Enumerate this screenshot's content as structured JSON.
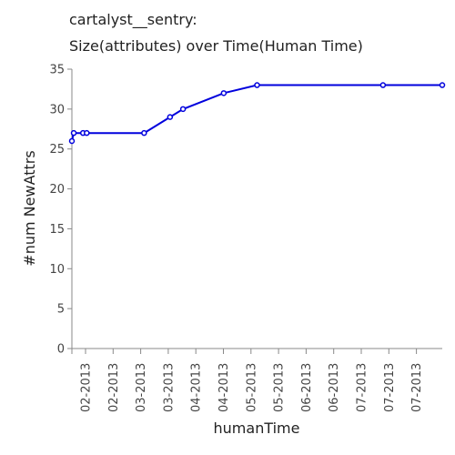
{
  "chart_data": {
    "type": "line",
    "title": [
      "cartalyst__sentry:",
      "Size(attributes) over Time(Human Time)"
    ],
    "xlabel": "humanTime",
    "ylabel": "#num NewAttrs",
    "ylim": [
      0,
      35
    ],
    "yticks": [
      0,
      5,
      10,
      15,
      20,
      25,
      30,
      35
    ],
    "x_tick_labels": [
      "02-2013",
      "02-2013",
      "03-2013",
      "03-2013",
      "04-2013",
      "04-2013",
      "05-2013",
      "05-2013",
      "06-2013",
      "06-2013",
      "07-2013",
      "07-2013",
      "07-2013"
    ],
    "grid": false,
    "series": [
      {
        "color": "#0000dd",
        "x": [
          0,
          0.05,
          0.3,
          0.4,
          1.95,
          2.65,
          3.0,
          4.1,
          5.0,
          8.4,
          10.0
        ],
        "values": [
          26,
          27,
          27,
          27,
          27,
          29,
          30,
          32,
          33,
          33,
          33
        ]
      }
    ]
  }
}
